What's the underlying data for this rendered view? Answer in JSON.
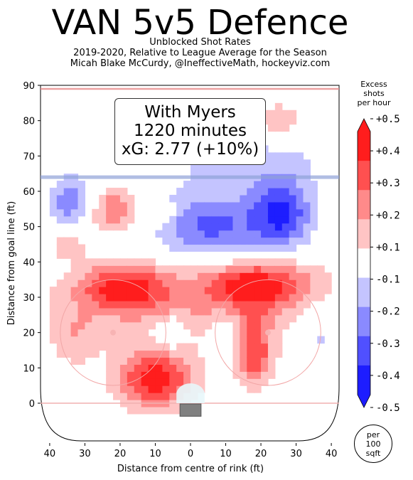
{
  "header": {
    "title": "VAN 5v5 Defence",
    "subtitle1": "Unblocked Shot Rates",
    "subtitle2": "2019-2020, Relative to League Average for the Season",
    "subtitle3": "Micah Blake McCurdy, @IneffectiveMath, hockeyviz.com"
  },
  "annotation": {
    "line1": "With Myers",
    "line2": "1220 minutes",
    "line3": "xG: 2.77 (+10%)"
  },
  "colorbar": {
    "title1": "Excess",
    "title2": "shots",
    "title3": "per hour",
    "ticks": [
      "+0.5",
      "+0.4",
      "+0.3",
      "+0.2",
      "+0.1",
      "-0.1",
      "-0.2",
      "-0.3",
      "-0.4",
      "-0.5"
    ],
    "colors": [
      "#ff1d1d",
      "#ff5050",
      "#ff8a8a",
      "#ffc4c4",
      "#ffffff",
      "#c4c4ff",
      "#8a8aff",
      "#5050ff",
      "#1d1dff"
    ],
    "note1": "per",
    "note2": "100",
    "note3": "sqft"
  },
  "chart_data": {
    "type": "heatmap",
    "title": "VAN 5v5 Defence",
    "xlabel": "Distance from centre of rink (ft)",
    "ylabel": "Distance from goal line (ft)",
    "xlim": [
      -42,
      42
    ],
    "ylim": [
      -11,
      90
    ],
    "xticks": [
      -40,
      -30,
      -20,
      -10,
      0,
      10,
      20,
      30,
      40
    ],
    "xtick_labels": [
      "40",
      "30",
      "20",
      "10",
      "0",
      "10",
      "20",
      "30",
      "40"
    ],
    "yticks": [
      0,
      10,
      20,
      30,
      40,
      50,
      60,
      70,
      80,
      90
    ],
    "ytick_labels": [
      "0",
      "10",
      "20",
      "30",
      "40",
      "50",
      "60",
      "70",
      "80",
      "90"
    ],
    "zlim": [
      -0.5,
      0.5
    ],
    "blobs": [
      {
        "x": -10,
        "y": 7,
        "sx": 8,
        "sy": 6,
        "v": 0.46
      },
      {
        "x": -19,
        "y": 33,
        "sx": 9,
        "sy": 5,
        "v": 0.38
      },
      {
        "x": 19,
        "y": 34,
        "sx": 11,
        "sy": 5,
        "v": 0.4
      },
      {
        "x": 18,
        "y": 14,
        "sx": 4,
        "sy": 7,
        "v": 0.36
      },
      {
        "x": 0,
        "y": 28,
        "sx": 30,
        "sy": 8,
        "v": 0.17
      },
      {
        "x": 25,
        "y": 80,
        "sx": 5,
        "sy": 4,
        "v": 0.18
      },
      {
        "x": -23,
        "y": 55,
        "sx": 6,
        "sy": 5,
        "v": 0.3
      },
      {
        "x": -35,
        "y": 45,
        "sx": 4,
        "sy": 3,
        "v": 0.15
      },
      {
        "x": -33,
        "y": 18,
        "sx": 5,
        "sy": 6,
        "v": 0.15
      },
      {
        "x": -8,
        "y": 54,
        "sx": 3,
        "sy": 2,
        "v": 0.13
      },
      {
        "x": 6,
        "y": 50,
        "sx": 11,
        "sy": 7,
        "v": -0.33
      },
      {
        "x": 26,
        "y": 54,
        "sx": 6,
        "sy": 7,
        "v": -0.4
      },
      {
        "x": -33,
        "y": 57,
        "sx": 5,
        "sy": 5,
        "v": -0.32
      },
      {
        "x": 36,
        "y": 20,
        "sx": 4,
        "sy": 7,
        "v": -0.15
      },
      {
        "x": 10,
        "y": 17,
        "sx": 3,
        "sy": 6,
        "v": -0.14
      },
      {
        "x": -6,
        "y": 20,
        "sx": 3,
        "sy": 3,
        "v": -0.22
      },
      {
        "x": -23,
        "y": 45,
        "sx": 3,
        "sy": 2,
        "v": -0.16
      },
      {
        "x": 15,
        "y": 69,
        "sx": 18,
        "sy": 6,
        "v": -0.13
      }
    ]
  }
}
